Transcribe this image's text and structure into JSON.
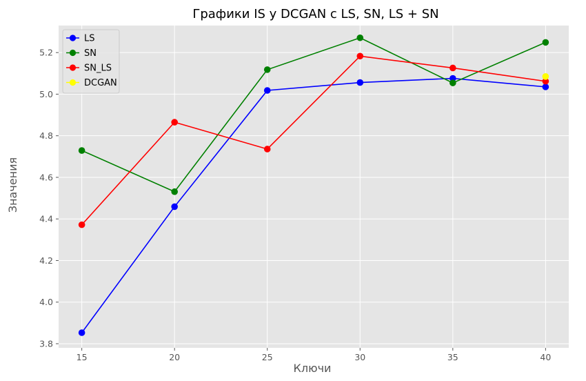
{
  "chart_data": {
    "type": "line",
    "title": "Графики IS у DCGAN с LS, SN, LS + SN",
    "xlabel": "Ключи",
    "ylabel": "Значения",
    "x": [
      15,
      20,
      25,
      30,
      35,
      40
    ],
    "xticks": [
      15,
      20,
      25,
      30,
      35,
      40
    ],
    "yticks": [
      3.8,
      4.0,
      4.2,
      4.4,
      4.6,
      4.8,
      5.0,
      5.2
    ],
    "xlim": [
      13.75,
      41.25
    ],
    "ylim": [
      3.78,
      5.33
    ],
    "grid": true,
    "legend_position": "top-left",
    "series": [
      {
        "name": "LS",
        "color": "#0000ff",
        "x": [
          15,
          20,
          25,
          30,
          35,
          40
        ],
        "values": [
          3.853,
          4.459,
          5.018,
          5.056,
          5.076,
          5.035
        ]
      },
      {
        "name": "SN",
        "color": "#008000",
        "x": [
          15,
          20,
          25,
          30,
          35,
          40
        ],
        "values": [
          4.729,
          4.531,
          5.118,
          5.271,
          5.054,
          5.249
        ]
      },
      {
        "name": "SN_LS",
        "color": "#ff0000",
        "x": [
          15,
          20,
          25,
          30,
          35,
          40
        ],
        "values": [
          4.372,
          4.865,
          4.736,
          5.183,
          5.126,
          5.062
        ]
      },
      {
        "name": "DCGAN",
        "color": "#ffff00",
        "x": [
          40
        ],
        "values": [
          5.085
        ]
      }
    ]
  }
}
